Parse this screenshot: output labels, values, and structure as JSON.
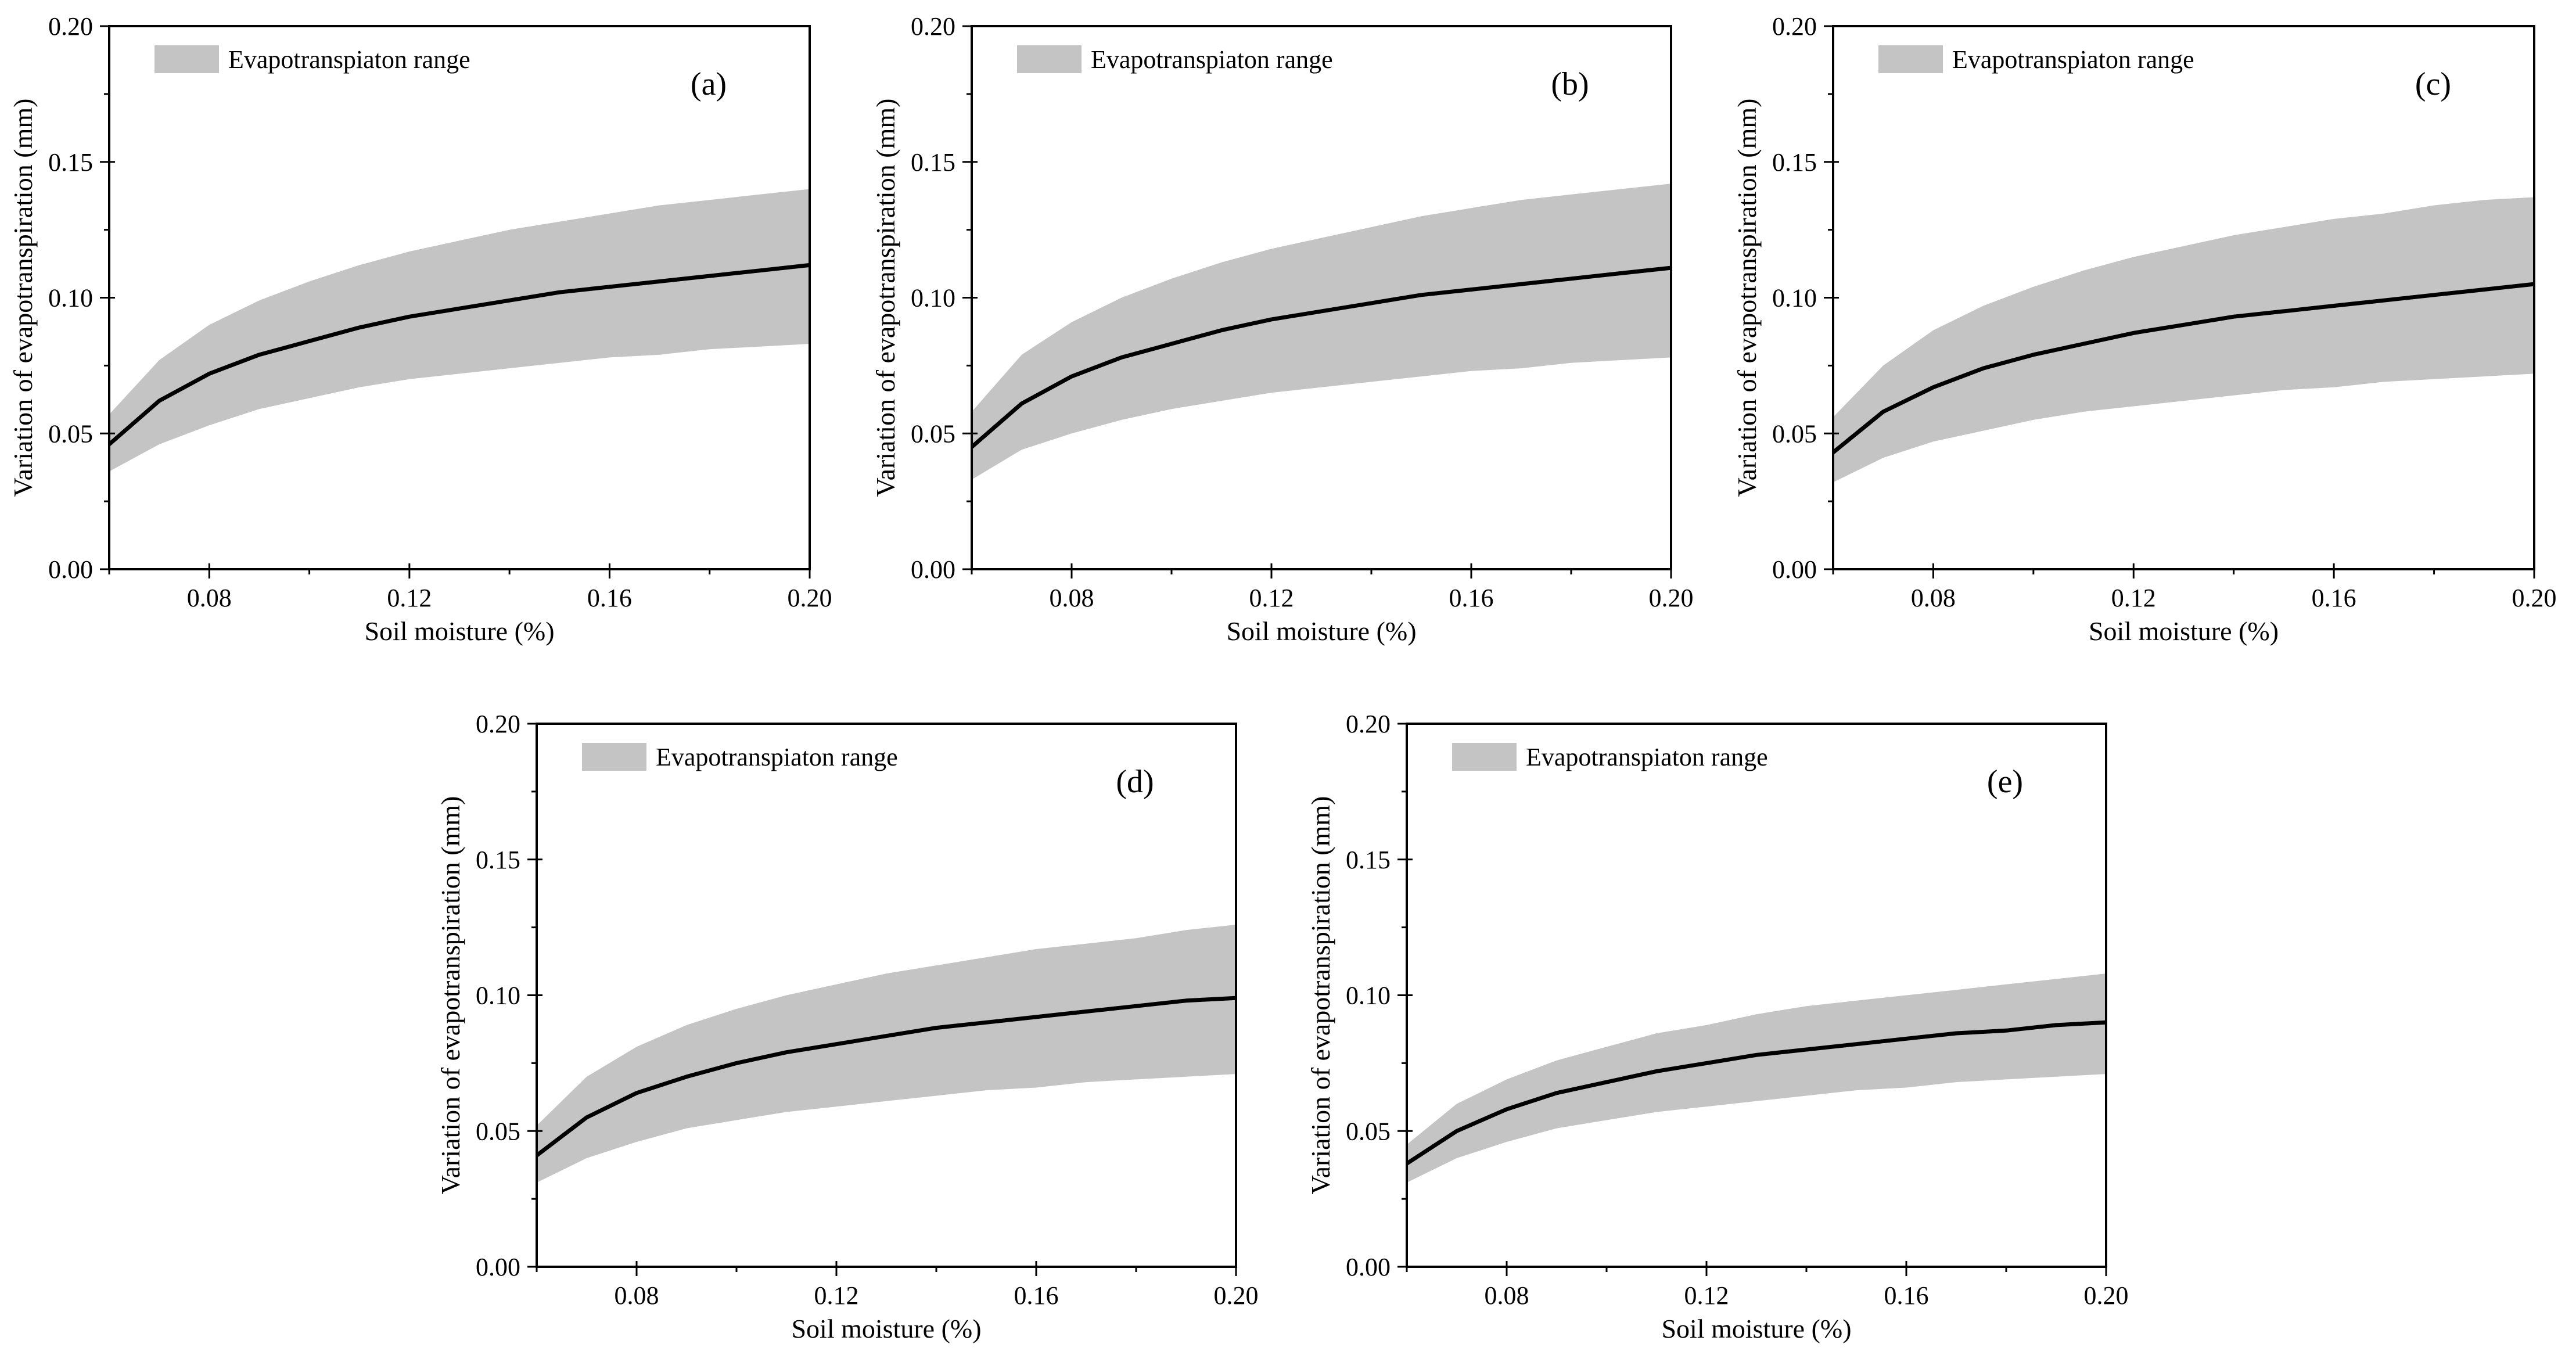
{
  "figure": {
    "x_tick_values": [
      0.08,
      0.12,
      0.16,
      0.2
    ],
    "x_tick_labels": [
      "0.08",
      "0.12",
      "0.16",
      "0.20"
    ],
    "y_tick_values": [
      0.0,
      0.05,
      0.1,
      0.15,
      0.2
    ],
    "y_tick_labels": [
      "0.00",
      "0.05",
      "0.10",
      "0.15",
      "0.20"
    ],
    "band_color": "#c4c4c4",
    "line_color": "#000000"
  },
  "chart_data": [
    {
      "type": "area",
      "panel_label": "(a)",
      "legend": [
        "Evapotranspiaton range"
      ],
      "xlabel": "Soil moisture (%)",
      "ylabel": "Variation of evapotranspiration (mm)",
      "xlim": [
        0.06,
        0.2
      ],
      "ylim": [
        0.0,
        0.2
      ],
      "x": [
        0.06,
        0.07,
        0.08,
        0.09,
        0.1,
        0.11,
        0.12,
        0.13,
        0.14,
        0.15,
        0.16,
        0.17,
        0.18,
        0.19,
        0.2
      ],
      "series": [
        {
          "name": "Evapotranspiaton range upper",
          "values": [
            0.057,
            0.077,
            0.09,
            0.099,
            0.106,
            0.112,
            0.117,
            0.121,
            0.125,
            0.128,
            0.131,
            0.134,
            0.136,
            0.138,
            0.14
          ]
        },
        {
          "name": "Evapotranspiaton range lower",
          "values": [
            0.036,
            0.046,
            0.053,
            0.059,
            0.063,
            0.067,
            0.07,
            0.072,
            0.074,
            0.076,
            0.078,
            0.079,
            0.081,
            0.082,
            0.083
          ]
        },
        {
          "name": "Mean",
          "values": [
            0.046,
            0.062,
            0.072,
            0.079,
            0.084,
            0.089,
            0.093,
            0.096,
            0.099,
            0.102,
            0.104,
            0.106,
            0.108,
            0.11,
            0.112
          ]
        }
      ]
    },
    {
      "type": "area",
      "panel_label": "(b)",
      "legend": [
        "Evapotranspiaton range"
      ],
      "xlabel": "Soil moisture (%)",
      "ylabel": "Variation of evapotranspiration (mm)",
      "xlim": [
        0.06,
        0.2
      ],
      "ylim": [
        0.0,
        0.2
      ],
      "x": [
        0.06,
        0.07,
        0.08,
        0.09,
        0.1,
        0.11,
        0.12,
        0.13,
        0.14,
        0.15,
        0.16,
        0.17,
        0.18,
        0.19,
        0.2
      ],
      "series": [
        {
          "name": "Evapotranspiaton range upper",
          "values": [
            0.058,
            0.079,
            0.091,
            0.1,
            0.107,
            0.113,
            0.118,
            0.122,
            0.126,
            0.13,
            0.133,
            0.136,
            0.138,
            0.14,
            0.142
          ]
        },
        {
          "name": "Evapotranspiaton range lower",
          "values": [
            0.033,
            0.044,
            0.05,
            0.055,
            0.059,
            0.062,
            0.065,
            0.067,
            0.069,
            0.071,
            0.073,
            0.074,
            0.076,
            0.077,
            0.078
          ]
        },
        {
          "name": "Mean",
          "values": [
            0.045,
            0.061,
            0.071,
            0.078,
            0.083,
            0.088,
            0.092,
            0.095,
            0.098,
            0.101,
            0.103,
            0.105,
            0.107,
            0.109,
            0.111
          ]
        }
      ]
    },
    {
      "type": "area",
      "panel_label": "(c)",
      "legend": [
        "Evapotranspiaton range"
      ],
      "xlabel": "Soil moisture (%)",
      "ylabel": "Variation of evapotranspiration (mm)",
      "xlim": [
        0.06,
        0.2
      ],
      "ylim": [
        0.0,
        0.2
      ],
      "x": [
        0.06,
        0.07,
        0.08,
        0.09,
        0.1,
        0.11,
        0.12,
        0.13,
        0.14,
        0.15,
        0.16,
        0.17,
        0.18,
        0.19,
        0.2
      ],
      "series": [
        {
          "name": "Evapotranspiaton range upper",
          "values": [
            0.056,
            0.075,
            0.088,
            0.097,
            0.104,
            0.11,
            0.115,
            0.119,
            0.123,
            0.126,
            0.129,
            0.131,
            0.134,
            0.136,
            0.137
          ]
        },
        {
          "name": "Evapotranspiaton range lower",
          "values": [
            0.032,
            0.041,
            0.047,
            0.051,
            0.055,
            0.058,
            0.06,
            0.062,
            0.064,
            0.066,
            0.067,
            0.069,
            0.07,
            0.071,
            0.072
          ]
        },
        {
          "name": "Mean",
          "values": [
            0.043,
            0.058,
            0.067,
            0.074,
            0.079,
            0.083,
            0.087,
            0.09,
            0.093,
            0.095,
            0.097,
            0.099,
            0.101,
            0.103,
            0.105
          ]
        }
      ]
    },
    {
      "type": "area",
      "panel_label": "(d)",
      "legend": [
        "Evapotranspiaton range"
      ],
      "xlabel": "Soil moisture (%)",
      "ylabel": "Variation of evapotranspiration (mm)",
      "xlim": [
        0.06,
        0.2
      ],
      "ylim": [
        0.0,
        0.2
      ],
      "x": [
        0.06,
        0.07,
        0.08,
        0.09,
        0.1,
        0.11,
        0.12,
        0.13,
        0.14,
        0.15,
        0.16,
        0.17,
        0.18,
        0.19,
        0.2
      ],
      "series": [
        {
          "name": "Evapotranspiaton range upper",
          "values": [
            0.052,
            0.07,
            0.081,
            0.089,
            0.095,
            0.1,
            0.104,
            0.108,
            0.111,
            0.114,
            0.117,
            0.119,
            0.121,
            0.124,
            0.126
          ]
        },
        {
          "name": "Evapotranspiaton range lower",
          "values": [
            0.031,
            0.04,
            0.046,
            0.051,
            0.054,
            0.057,
            0.059,
            0.061,
            0.063,
            0.065,
            0.066,
            0.068,
            0.069,
            0.07,
            0.071
          ]
        },
        {
          "name": "Mean",
          "values": [
            0.041,
            0.055,
            0.064,
            0.07,
            0.075,
            0.079,
            0.082,
            0.085,
            0.088,
            0.09,
            0.092,
            0.094,
            0.096,
            0.098,
            0.099
          ]
        }
      ]
    },
    {
      "type": "area",
      "panel_label": "(e)",
      "legend": [
        "Evapotranspiaton range"
      ],
      "xlabel": "Soil moisture (%)",
      "ylabel": "Variation of evapotranspiration (mm)",
      "xlim": [
        0.06,
        0.2
      ],
      "ylim": [
        0.0,
        0.2
      ],
      "x": [
        0.06,
        0.07,
        0.08,
        0.09,
        0.1,
        0.11,
        0.12,
        0.13,
        0.14,
        0.15,
        0.16,
        0.17,
        0.18,
        0.19,
        0.2
      ],
      "series": [
        {
          "name": "Evapotranspiaton range upper",
          "values": [
            0.045,
            0.06,
            0.069,
            0.076,
            0.081,
            0.086,
            0.089,
            0.093,
            0.096,
            0.098,
            0.1,
            0.102,
            0.104,
            0.106,
            0.108
          ]
        },
        {
          "name": "Evapotranspiaton range lower",
          "values": [
            0.031,
            0.04,
            0.046,
            0.051,
            0.054,
            0.057,
            0.059,
            0.061,
            0.063,
            0.065,
            0.066,
            0.068,
            0.069,
            0.07,
            0.071
          ]
        },
        {
          "name": "Mean",
          "values": [
            0.038,
            0.05,
            0.058,
            0.064,
            0.068,
            0.072,
            0.075,
            0.078,
            0.08,
            0.082,
            0.084,
            0.086,
            0.087,
            0.089,
            0.09
          ]
        }
      ]
    }
  ]
}
